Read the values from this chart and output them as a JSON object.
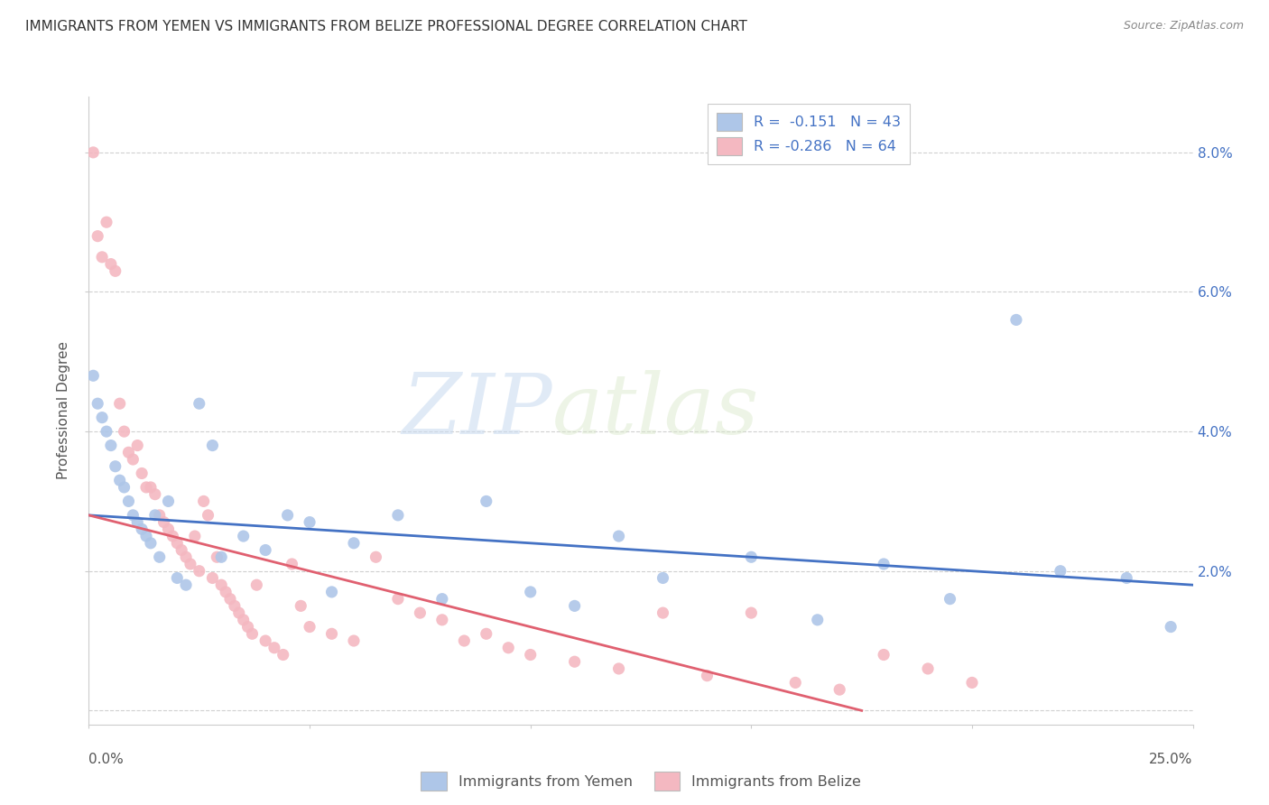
{
  "title": "IMMIGRANTS FROM YEMEN VS IMMIGRANTS FROM BELIZE PROFESSIONAL DEGREE CORRELATION CHART",
  "source": "Source: ZipAtlas.com",
  "ylabel": "Professional Degree",
  "ylabel_right_ticks": [
    "2.0%",
    "4.0%",
    "6.0%",
    "8.0%"
  ],
  "ylabel_right_vals": [
    0.02,
    0.04,
    0.06,
    0.08
  ],
  "xlim": [
    0.0,
    0.25
  ],
  "ylim": [
    -0.002,
    0.088
  ],
  "legend_entries": [
    {
      "label": "R =  -0.151   N = 43",
      "color": "#aec6e8"
    },
    {
      "label": "R = -0.286   N = 64",
      "color": "#f4b8c1"
    }
  ],
  "legend_bottom": [
    {
      "label": "Immigrants from Yemen",
      "color": "#aec6e8"
    },
    {
      "label": "Immigrants from Belize",
      "color": "#f4b8c1"
    }
  ],
  "yemen_x": [
    0.001,
    0.002,
    0.003,
    0.004,
    0.005,
    0.006,
    0.007,
    0.008,
    0.009,
    0.01,
    0.011,
    0.012,
    0.013,
    0.014,
    0.015,
    0.016,
    0.018,
    0.02,
    0.022,
    0.025,
    0.028,
    0.03,
    0.035,
    0.04,
    0.045,
    0.05,
    0.055,
    0.06,
    0.07,
    0.08,
    0.09,
    0.1,
    0.11,
    0.12,
    0.13,
    0.15,
    0.165,
    0.18,
    0.195,
    0.21,
    0.22,
    0.235,
    0.245
  ],
  "yemen_y": [
    0.048,
    0.044,
    0.042,
    0.04,
    0.038,
    0.035,
    0.033,
    0.032,
    0.03,
    0.028,
    0.027,
    0.026,
    0.025,
    0.024,
    0.028,
    0.022,
    0.03,
    0.019,
    0.018,
    0.044,
    0.038,
    0.022,
    0.025,
    0.023,
    0.028,
    0.027,
    0.017,
    0.024,
    0.028,
    0.016,
    0.03,
    0.017,
    0.015,
    0.025,
    0.019,
    0.022,
    0.013,
    0.021,
    0.016,
    0.056,
    0.02,
    0.019,
    0.012
  ],
  "belize_x": [
    0.001,
    0.002,
    0.003,
    0.004,
    0.005,
    0.006,
    0.007,
    0.008,
    0.009,
    0.01,
    0.011,
    0.012,
    0.013,
    0.014,
    0.015,
    0.016,
    0.017,
    0.018,
    0.019,
    0.02,
    0.021,
    0.022,
    0.023,
    0.024,
    0.025,
    0.026,
    0.027,
    0.028,
    0.029,
    0.03,
    0.031,
    0.032,
    0.033,
    0.034,
    0.035,
    0.036,
    0.037,
    0.038,
    0.04,
    0.042,
    0.044,
    0.046,
    0.048,
    0.05,
    0.055,
    0.06,
    0.065,
    0.07,
    0.075,
    0.08,
    0.085,
    0.09,
    0.095,
    0.1,
    0.11,
    0.12,
    0.13,
    0.14,
    0.15,
    0.16,
    0.17,
    0.18,
    0.19,
    0.2
  ],
  "belize_y": [
    0.08,
    0.068,
    0.065,
    0.07,
    0.064,
    0.063,
    0.044,
    0.04,
    0.037,
    0.036,
    0.038,
    0.034,
    0.032,
    0.032,
    0.031,
    0.028,
    0.027,
    0.026,
    0.025,
    0.024,
    0.023,
    0.022,
    0.021,
    0.025,
    0.02,
    0.03,
    0.028,
    0.019,
    0.022,
    0.018,
    0.017,
    0.016,
    0.015,
    0.014,
    0.013,
    0.012,
    0.011,
    0.018,
    0.01,
    0.009,
    0.008,
    0.021,
    0.015,
    0.012,
    0.011,
    0.01,
    0.022,
    0.016,
    0.014,
    0.013,
    0.01,
    0.011,
    0.009,
    0.008,
    0.007,
    0.006,
    0.014,
    0.005,
    0.014,
    0.004,
    0.003,
    0.008,
    0.006,
    0.004
  ],
  "yemen_trend_x": [
    0.0,
    0.25
  ],
  "yemen_trend_y": [
    0.028,
    0.018
  ],
  "belize_trend_x": [
    0.0,
    0.175
  ],
  "belize_trend_y": [
    0.028,
    0.0
  ],
  "background_color": "#ffffff",
  "grid_color": "#d0d0d0",
  "yemen_dot_color": "#aec6e8",
  "belize_dot_color": "#f4b8c1",
  "yemen_line_color": "#4472c4",
  "belize_line_color": "#e06070",
  "watermark_zip": "ZIP",
  "watermark_atlas": "atlas",
  "title_fontsize": 11,
  "source_fontsize": 9,
  "axis_label_color": "#4472c4"
}
